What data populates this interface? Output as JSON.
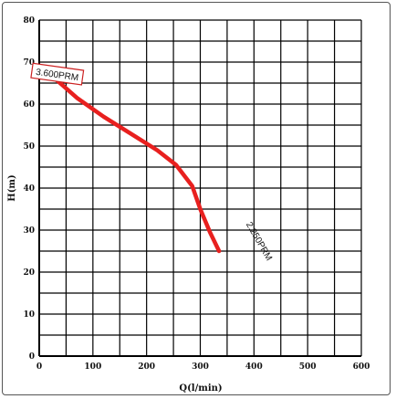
{
  "chart_data": {
    "type": "line",
    "xlabel": "Q(l/min)",
    "ylabel": "H(m)",
    "xlim": [
      0,
      600
    ],
    "ylim": [
      0,
      80
    ],
    "x_ticks": [
      0,
      100,
      200,
      300,
      400,
      500,
      600
    ],
    "y_ticks": [
      0,
      10,
      20,
      30,
      40,
      50,
      60,
      70,
      80
    ],
    "grid": true,
    "series": [
      {
        "color": "#e8201f",
        "x": [
          30,
          70,
          120,
          170,
          220,
          255,
          285,
          300,
          318,
          335
        ],
        "y": [
          66,
          61.5,
          57,
          53,
          49,
          45.5,
          40.5,
          35,
          29.5,
          25
        ]
      }
    ],
    "annotations": [
      {
        "text": "3.600PRM",
        "x": 30,
        "y": 67
      },
      {
        "text": "2.250PRM",
        "x": 405,
        "y": 27
      }
    ]
  }
}
